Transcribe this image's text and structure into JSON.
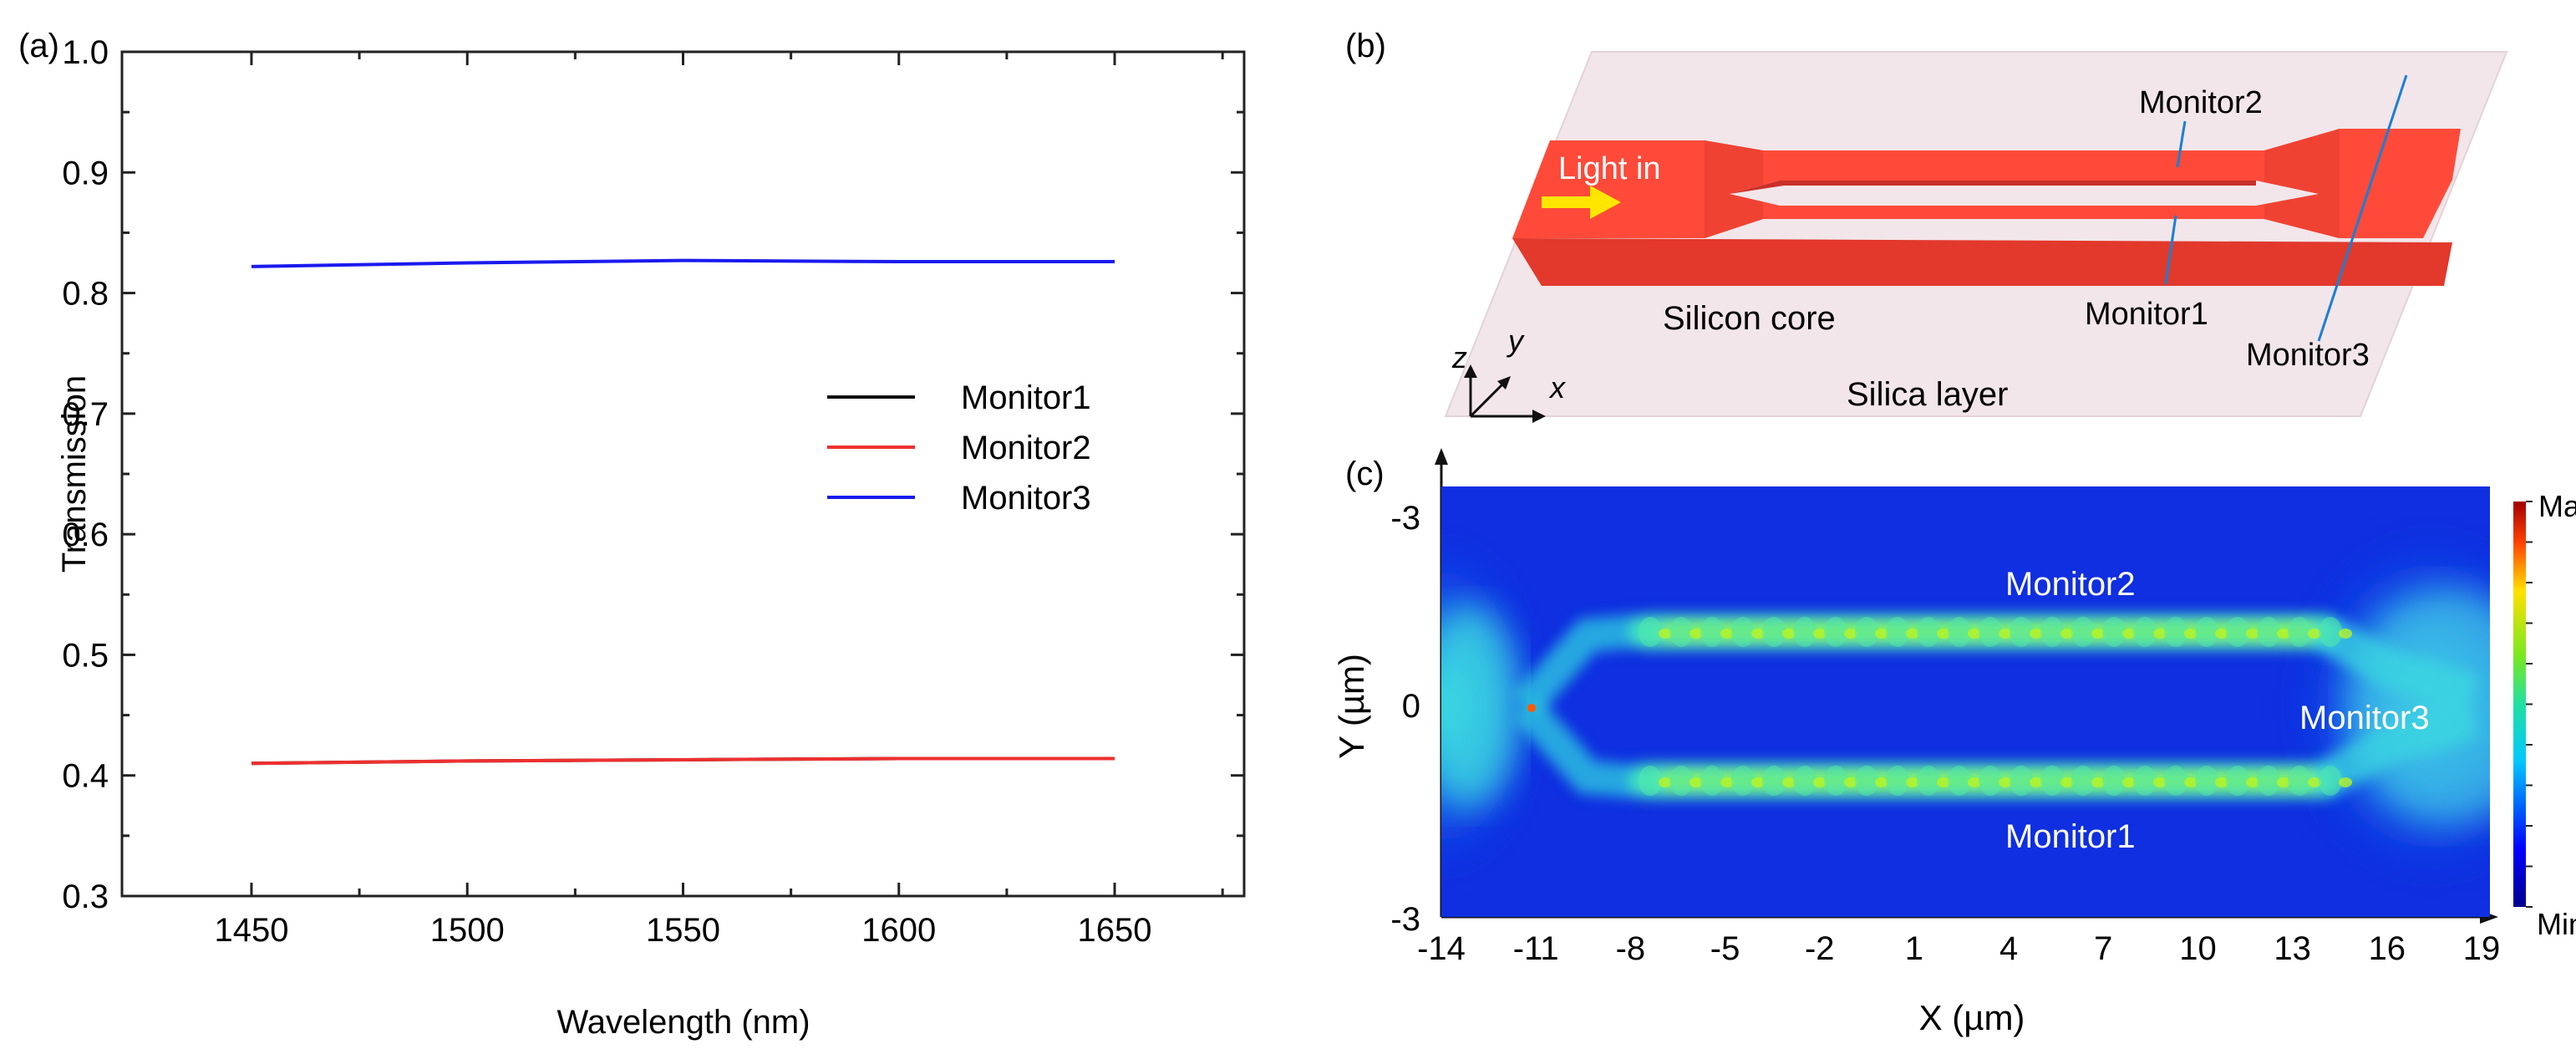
{
  "panels": {
    "a": {
      "label": "(a)"
    },
    "b": {
      "label": "(b)"
    },
    "c": {
      "label": "(c)"
    }
  },
  "chart_data": [
    {
      "type": "line",
      "panel": "a",
      "title": "",
      "xlabel": "Wavelength (nm)",
      "ylabel": "Transmission",
      "xlim": [
        1420,
        1680
      ],
      "ylim": [
        0.3,
        1.0
      ],
      "xticks": [
        1450,
        1500,
        1550,
        1600,
        1650
      ],
      "yticks": [
        0.3,
        0.4,
        0.5,
        0.6,
        0.7,
        0.8,
        0.9,
        1.0
      ],
      "xtick_labels": [
        "1450",
        "1500",
        "1550",
        "1600",
        "1650"
      ],
      "ytick_labels": [
        "0.3",
        "0.4",
        "0.5",
        "0.6",
        "0.7",
        "0.8",
        "0.9",
        "1.0"
      ],
      "legend_position": "right",
      "x": [
        1450,
        1500,
        1550,
        1600,
        1650
      ],
      "series": [
        {
          "name": "Monitor1",
          "color": "#111111",
          "values": [
            0.41,
            0.412,
            0.413,
            0.414,
            0.414
          ]
        },
        {
          "name": "Monitor2",
          "color": "#ee3030",
          "values": [
            0.41,
            0.412,
            0.413,
            0.414,
            0.414
          ]
        },
        {
          "name": "Monitor3",
          "color": "#1a1aee",
          "values": [
            0.822,
            0.825,
            0.827,
            0.826,
            0.826
          ]
        }
      ]
    },
    {
      "type": "heatmap",
      "panel": "c",
      "title": "",
      "xlabel": "X (µm)",
      "ylabel": "Y (µm)",
      "xlim": [
        -14,
        19
      ],
      "ylim": [
        -3,
        3
      ],
      "xtick_labels": [
        "-14",
        "-11",
        "-8",
        "-5",
        "-2",
        "1",
        "4",
        "7",
        "10",
        "13",
        "16",
        "19"
      ],
      "ytick_labels": [
        "-3",
        "0",
        "-3"
      ],
      "colorbar": {
        "max_label": "Max",
        "min_label": "Min"
      },
      "annotations": [
        "Monitor2",
        "Monitor3",
        "Monitor1"
      ]
    }
  ],
  "diagram": {
    "light_in": "Light in",
    "monitor1": "Monitor1",
    "monitor2": "Monitor2",
    "monitor3": "Monitor3",
    "core": "Silicon core",
    "layer": "Silica layer",
    "axis_z": "z",
    "axis_y": "y",
    "axis_x": "x",
    "core_color": "#ff4a3a",
    "layer_color": "#f2e6ea",
    "arrow_color": "#ffe600"
  }
}
